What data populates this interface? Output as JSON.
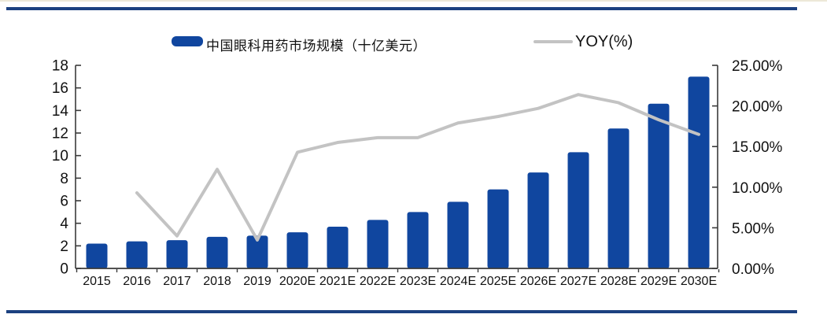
{
  "page": {
    "background": "#FFFFFF",
    "top_edge_line_color": "#EDE8D8",
    "rule_color": "#1C4180"
  },
  "legend": {
    "market_label": "中国眼科用药市场规模（十亿美元）",
    "yoy_label": "YOY(%)",
    "market_color": "#10469F",
    "yoy_color": "#C3C3C3"
  },
  "chart_data": {
    "type": "combo-bar-line",
    "title": "",
    "xlabel": "",
    "ylabel_left": "",
    "ylabel_right": "",
    "grid": false,
    "legend_position": "top",
    "categories": [
      "2015",
      "2016",
      "2017",
      "2018",
      "2019",
      "2020E",
      "2021E",
      "2022E",
      "2023E",
      "2024E",
      "2025E",
      "2026E",
      "2027E",
      "2028E",
      "2029E",
      "2030E"
    ],
    "series": [
      {
        "name": "中国眼科用药市场规模（十亿美元）",
        "type": "bar",
        "axis": "left",
        "color": "#10469F",
        "values": [
          2.2,
          2.4,
          2.5,
          2.8,
          2.9,
          3.2,
          3.7,
          4.3,
          5.0,
          5.9,
          7.0,
          8.5,
          10.3,
          12.4,
          14.6,
          17.0
        ]
      },
      {
        "name": "YOY(%)",
        "type": "line",
        "axis": "right",
        "color": "#C3C3C3",
        "values": [
          null,
          9.3,
          4.0,
          12.2,
          3.5,
          14.3,
          15.5,
          16.1,
          16.1,
          17.9,
          18.7,
          19.7,
          21.4,
          20.4,
          18.3,
          16.5
        ]
      }
    ],
    "left_axis": {
      "min": 0,
      "max": 18,
      "step": 2,
      "tick_labels": [
        "0",
        "2",
        "4",
        "6",
        "8",
        "10",
        "12",
        "14",
        "16",
        "18"
      ]
    },
    "right_axis": {
      "min": 0,
      "max": 25,
      "step": 5,
      "tick_labels": [
        "0.00%",
        "5.00%",
        "10.00%",
        "15.00%",
        "20.00%",
        "25.00%"
      ]
    }
  }
}
